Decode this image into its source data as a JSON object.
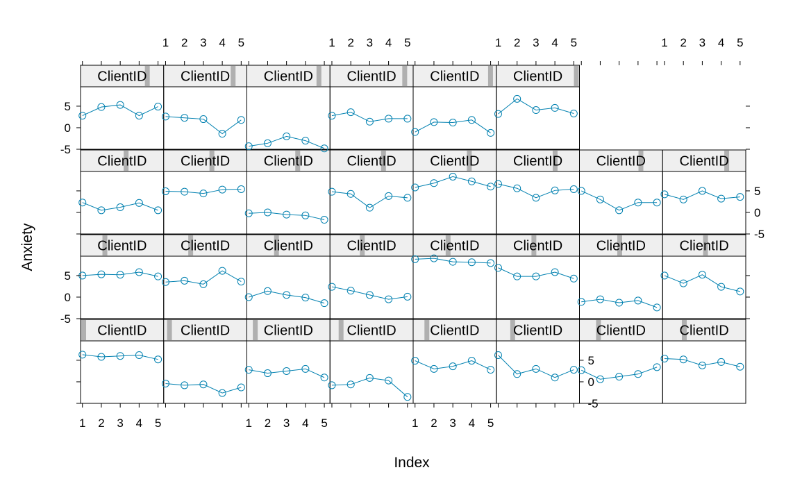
{
  "chart_data": {
    "type": "line",
    "xlabel": "Index",
    "ylabel": "Anxiety",
    "strip_label": "ClientID",
    "x_ticks": [
      1,
      2,
      3,
      4,
      5
    ],
    "y_ticks": [
      -5,
      0,
      5
    ],
    "xlim": [
      0.9,
      5.3
    ],
    "ylim": [
      -5,
      9.5
    ],
    "colors": {
      "line": "#0080B0",
      "strip_bg": "#EFEFEF",
      "strip_marker": "#B0B0B0",
      "border": "#000000"
    },
    "layout": {
      "columns": 8,
      "rows": 4
    },
    "panels": [
      {
        "level": 1,
        "values": [
          6.3,
          5.8,
          6.0,
          6.2,
          5.2
        ]
      },
      {
        "level": 2,
        "values": [
          -0.4,
          -0.8,
          -0.6,
          -2.6,
          -1.3
        ]
      },
      {
        "level": 3,
        "values": [
          2.8,
          2.0,
          2.5,
          3.0,
          1.0
        ]
      },
      {
        "level": 4,
        "values": [
          -0.8,
          -0.6,
          0.9,
          0.3,
          -3.5
        ]
      },
      {
        "level": 5,
        "values": [
          4.9,
          3.0,
          3.6,
          4.9,
          2.8
        ]
      },
      {
        "level": 6,
        "values": [
          6.2,
          1.8,
          3.0,
          1.0,
          2.8
        ]
      },
      {
        "level": 7,
        "values": [
          2.7,
          0.6,
          1.2,
          1.8,
          3.4
        ]
      },
      {
        "level": 8,
        "values": [
          5.4,
          5.2,
          3.8,
          4.6,
          3.5
        ]
      },
      {
        "level": 9,
        "values": [
          5.0,
          5.3,
          5.2,
          5.8,
          4.8
        ]
      },
      {
        "level": 10,
        "values": [
          3.5,
          3.8,
          3.0,
          6.1,
          3.6
        ]
      },
      {
        "level": 11,
        "values": [
          0.0,
          1.4,
          0.5,
          -0.1,
          -1.4
        ]
      },
      {
        "level": 12,
        "values": [
          2.4,
          1.5,
          0.5,
          -0.5,
          0.1
        ]
      },
      {
        "level": 13,
        "values": [
          8.8,
          9.0,
          8.2,
          8.1,
          7.9
        ]
      },
      {
        "level": 14,
        "values": [
          6.8,
          4.8,
          4.8,
          5.8,
          4.3
        ]
      },
      {
        "level": 15,
        "values": [
          -1.1,
          -0.5,
          -1.3,
          -0.8,
          -2.4
        ]
      },
      {
        "level": 16,
        "values": [
          5.0,
          3.2,
          5.2,
          2.4,
          1.3
        ]
      },
      {
        "level": 17,
        "values": [
          2.3,
          0.5,
          1.2,
          2.2,
          0.5
        ]
      },
      {
        "level": 18,
        "values": [
          4.9,
          4.8,
          4.4,
          5.3,
          5.4
        ]
      },
      {
        "level": 19,
        "values": [
          -0.2,
          0.0,
          -0.5,
          -0.7,
          -1.7
        ]
      },
      {
        "level": 20,
        "values": [
          4.8,
          4.3,
          1.1,
          3.8,
          3.4
        ]
      },
      {
        "level": 21,
        "values": [
          5.8,
          6.8,
          8.3,
          7.2,
          6.0
        ]
      },
      {
        "level": 22,
        "values": [
          6.6,
          5.6,
          3.4,
          5.1,
          5.4
        ]
      },
      {
        "level": 23,
        "values": [
          5.0,
          3.0,
          0.5,
          2.3,
          2.3
        ]
      },
      {
        "level": 24,
        "values": [
          4.2,
          3.0,
          5.0,
          3.2,
          3.6
        ]
      },
      {
        "level": 25,
        "values": [
          2.8,
          4.8,
          5.3,
          2.8,
          4.9
        ]
      },
      {
        "level": 26,
        "values": [
          2.6,
          2.3,
          2.0,
          -1.4,
          1.8
        ]
      },
      {
        "level": 27,
        "values": [
          -4.3,
          -3.6,
          -2.0,
          -3.0,
          -4.8
        ]
      },
      {
        "level": 28,
        "values": [
          2.8,
          3.6,
          1.4,
          2.1,
          2.1
        ]
      },
      {
        "level": 29,
        "values": [
          -1.0,
          1.3,
          1.2,
          1.8,
          -1.2
        ]
      },
      {
        "level": 30,
        "values": [
          3.2,
          6.7,
          4.1,
          4.6,
          3.3
        ]
      }
    ]
  }
}
